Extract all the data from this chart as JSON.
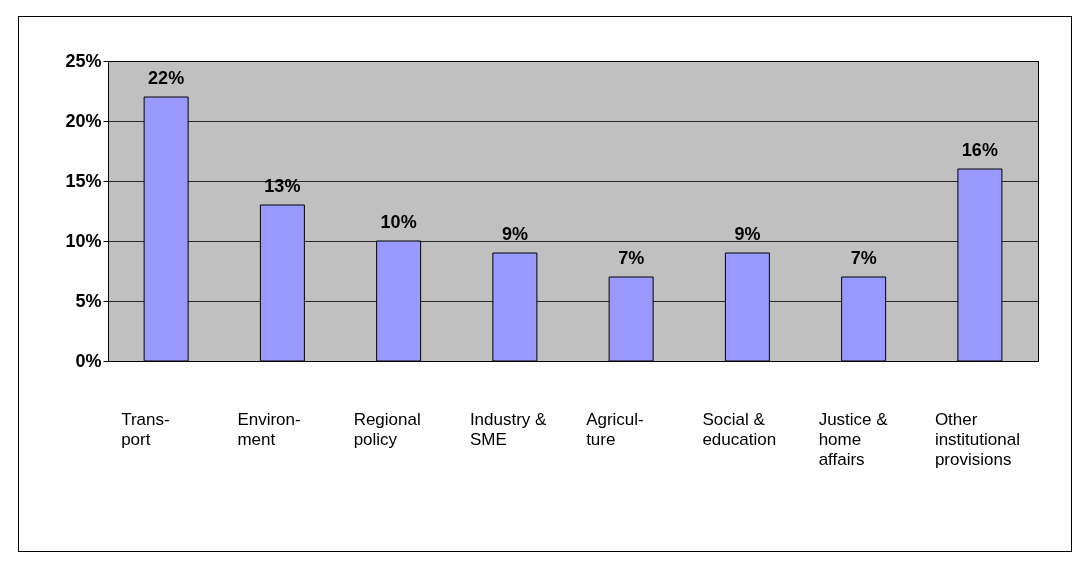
{
  "chart_data": {
    "type": "bar",
    "categories": [
      "Trans-port",
      "Environ-ment",
      "Regional policy",
      "Industry & SME",
      "Agricul-ture",
      "Social & education",
      "Justice & home affairs",
      "Other institutional provisions"
    ],
    "values": [
      22,
      13,
      10,
      9,
      7,
      9,
      7,
      16
    ],
    "color": "#9999ff",
    "ylim": [
      0,
      25
    ],
    "yticks": [
      {
        "value": 0,
        "label": "0%"
      },
      {
        "value": 5,
        "label": "5%"
      },
      {
        "value": 10,
        "label": "10%"
      },
      {
        "value": 15,
        "label": "15%"
      },
      {
        "value": 20,
        "label": "20%"
      },
      {
        "value": 25,
        "label": "25%"
      }
    ],
    "grid": true,
    "value_labels": [
      "22%",
      "13%",
      "10%",
      "9%",
      "7%",
      "9%",
      "7%",
      "16%"
    ]
  }
}
